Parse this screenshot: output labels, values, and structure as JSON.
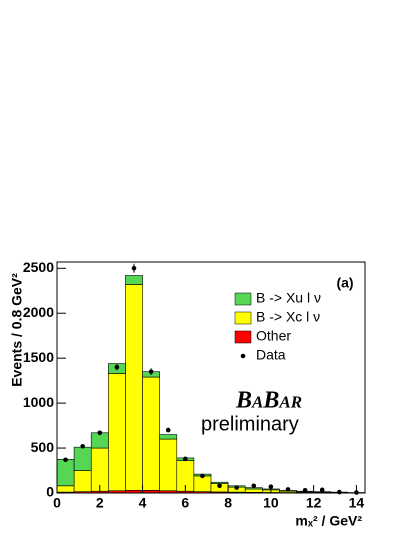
{
  "chart_data": {
    "type": "histogram",
    "y_label": "Events / 0.8 GeV²",
    "x_label": "mₓ² / GeV²",
    "annotations": [
      "(a)",
      "BaBar",
      "preliminary"
    ],
    "bins": [
      0,
      0.8,
      1.6,
      2.4,
      3.2,
      4.0,
      4.8,
      5.6,
      6.4,
      7.2,
      8.0,
      8.8,
      9.6,
      10.4,
      11.2,
      12.0,
      12.8,
      13.6,
      14.4
    ],
    "series": [
      {
        "name": "Other",
        "color": "#ff0000",
        "values": [
          10,
          15,
          20,
          25,
          30,
          30,
          25,
          20,
          15,
          12,
          10,
          8,
          6,
          5,
          4,
          3,
          2,
          1
        ]
      },
      {
        "name": "B -> Xc l ν",
        "color": "#ffff00",
        "values": [
          70,
          235,
          480,
          1305,
          2290,
          1260,
          575,
          340,
          175,
          93,
          55,
          37,
          29,
          15,
          8,
          5,
          3,
          1
        ]
      },
      {
        "name": "B -> Xu l ν",
        "color": "#55d655",
        "values": [
          295,
          260,
          170,
          110,
          100,
          60,
          50,
          30,
          20,
          15,
          15,
          15,
          10,
          10,
          8,
          7,
          5,
          3
        ]
      }
    ],
    "data": {
      "name": "Data",
      "color": "#000000",
      "x": [
        0.4,
        1.2,
        2.0,
        2.8,
        3.6,
        4.4,
        5.2,
        6.0,
        6.8,
        7.6,
        8.4,
        9.2,
        10.0,
        10.8,
        11.6,
        12.4,
        13.2,
        14.0
      ],
      "values": [
        370,
        520,
        670,
        1400,
        2500,
        1350,
        700,
        380,
        190,
        80,
        60,
        80,
        70,
        40,
        30,
        35,
        10,
        5
      ],
      "errors": [
        20,
        23,
        26,
        37,
        50,
        37,
        26,
        20,
        14,
        9,
        8,
        9,
        8,
        6,
        5,
        6,
        3,
        2
      ]
    },
    "legend_order": [
      2,
      1,
      0
    ],
    "xlim": [
      0,
      14.4
    ],
    "ylim": [
      0,
      2570
    ],
    "xticks": [
      0,
      2,
      4,
      6,
      8,
      10,
      12,
      14
    ],
    "yticks": [
      0,
      500,
      1000,
      1500,
      2000,
      2500
    ]
  }
}
